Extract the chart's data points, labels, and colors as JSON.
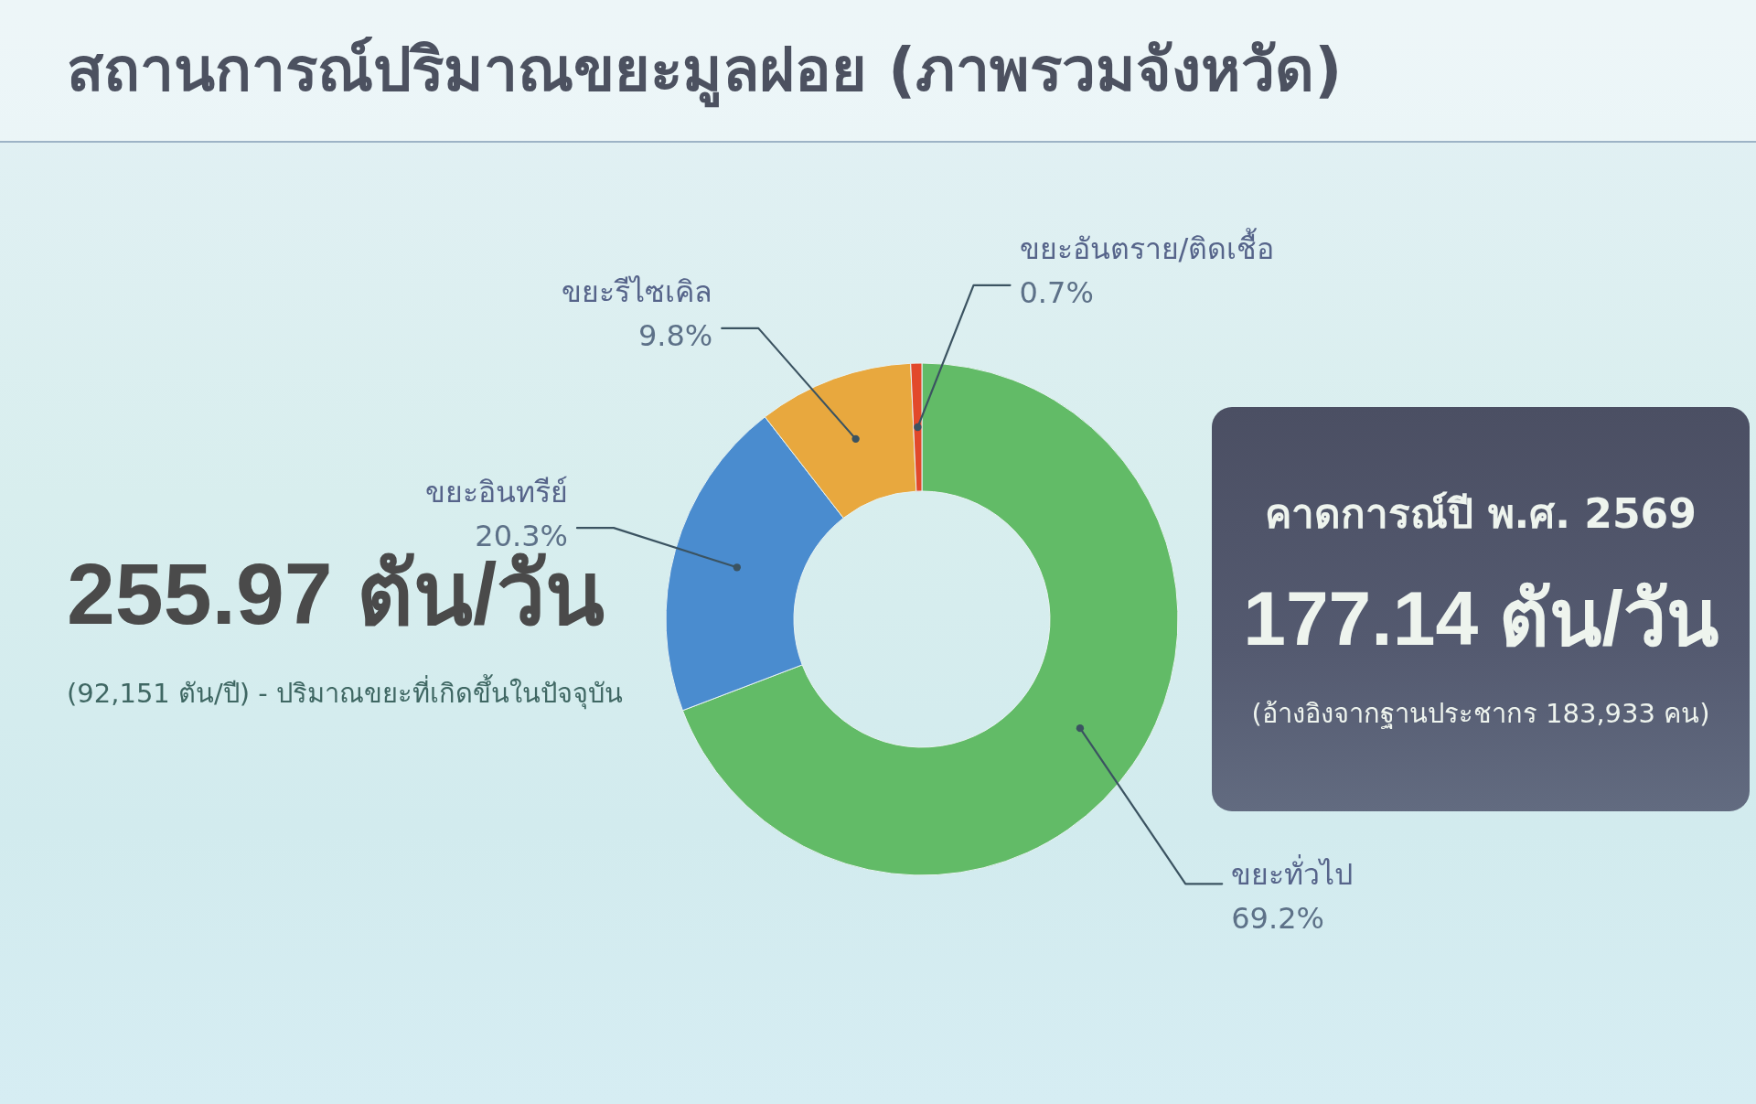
{
  "chart_data": [
    {
      "type": "other",
      "annotations": [
        "255.97 ตัน/วัน",
        "(92,151 ตัน/ปี) - ปริมาณขยะที่เกิดขึ้นในปัจจุบัน"
      ]
    },
    {
      "type": "donut",
      "title": "สถานการณ์ปริมาณขยะมูลฝอย (ภาพรวมจังหวัด)",
      "categories": [
        "ขยะทั่วไป",
        "ขยะอินทรีย์",
        "ขยะรีไซเคิล",
        "ขยะอันตราย/ติดเชื้อ"
      ],
      "values": [
        69.2,
        20.3,
        9.8,
        0.7
      ],
      "colors": [
        "#62bb67",
        "#4a8ccf",
        "#e8a83e",
        "#e2492b"
      ],
      "value_labels": [
        "69.2%",
        "20.3%",
        "9.8%",
        "0.7%"
      ]
    },
    {
      "type": "other",
      "title": "คาดการณ์ปี พ.ศ. 2569",
      "annotations": [
        "177.14 ตัน/วัน",
        "(อ้างอิงจากฐานประชากร 183,933 คน)"
      ]
    }
  ]
}
